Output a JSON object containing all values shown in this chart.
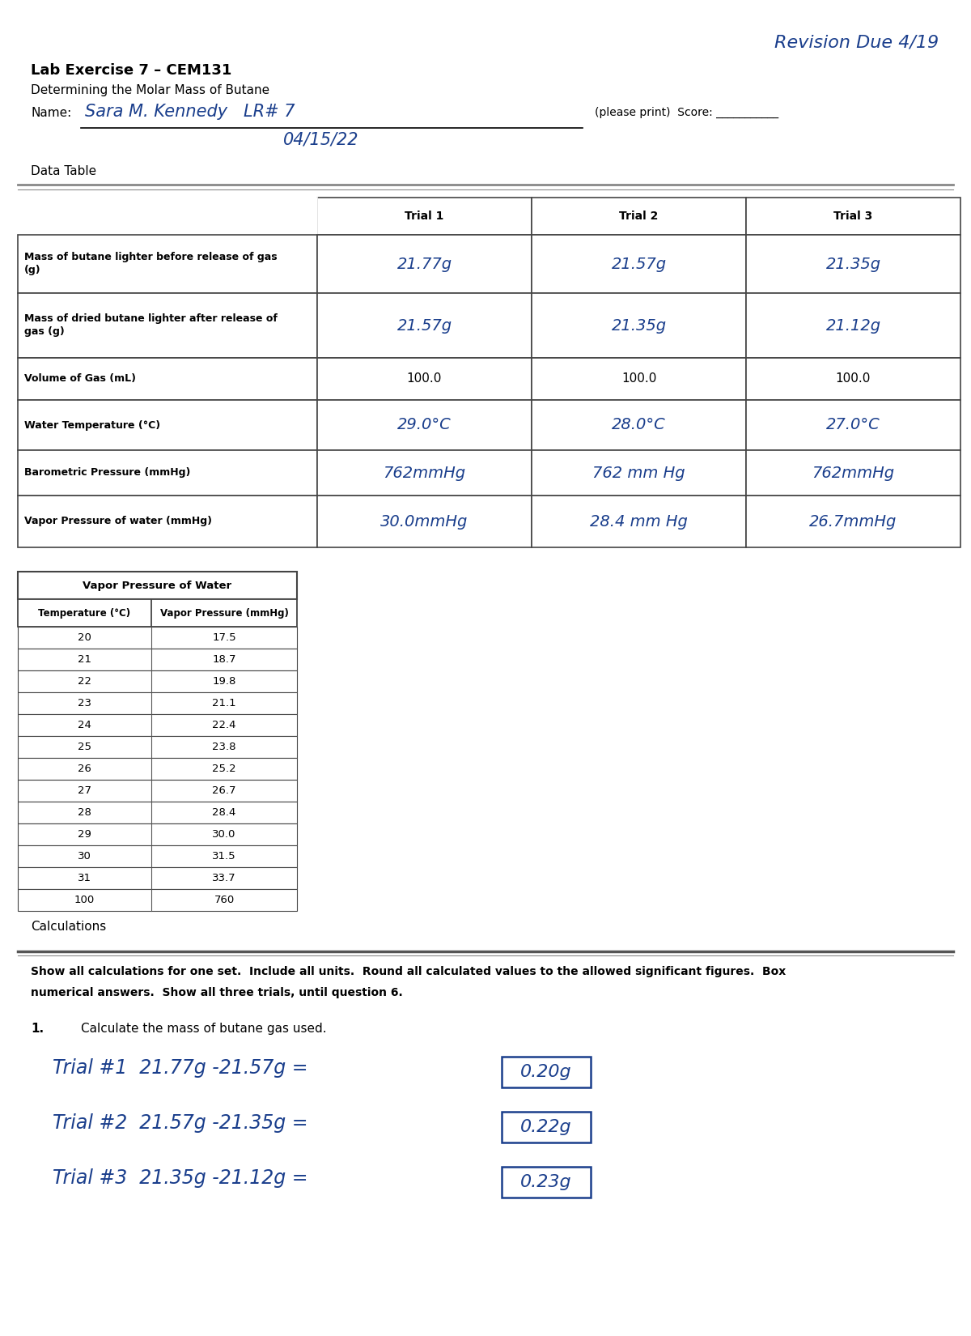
{
  "revision_text": "Revision Due 4/19",
  "title_line1": "Lab Exercise 7 – CEM131",
  "title_line2": "Determining the Molar Mass of Butane",
  "name_label": "Name:",
  "name_value": "Sara M. Kennedy   LR# 7",
  "date_value": "04/15/22",
  "please_print": "(please print)  Score: ___________",
  "data_table_label": "Data Table",
  "table_headers": [
    "",
    "Trial 1",
    "Trial 2",
    "Trial 3"
  ],
  "table_rows": [
    [
      "Mass of butane lighter before release of gas\n(g)",
      "21.77g",
      "21.57g",
      "21.35g"
    ],
    [
      "Mass of dried butane lighter after release of\ngas (g)",
      "21.57g",
      "21.35g",
      "21.12g"
    ],
    [
      "Volume of Gas (mL)",
      "100.0",
      "100.0",
      "100.0"
    ],
    [
      "Water Temperature (°C)",
      "29.0°C",
      "28.0°C",
      "27.0°C"
    ],
    [
      "Barometric Pressure (mmHg)",
      "762mmHg",
      "762 mm Hg",
      "762mmHg"
    ],
    [
      "Vapor Pressure of water (mmHg)",
      "30.0mmHg",
      "28.4 mm Hg",
      "26.7mmHg"
    ]
  ],
  "vapor_table_title": "Vapor Pressure of Water",
  "vapor_table_headers": [
    "Temperature (°C)",
    "Vapor Pressure (mmHg)"
  ],
  "vapor_table_data": [
    [
      "20",
      "17.5"
    ],
    [
      "21",
      "18.7"
    ],
    [
      "22",
      "19.8"
    ],
    [
      "23",
      "21.1"
    ],
    [
      "24",
      "22.4"
    ],
    [
      "25",
      "23.8"
    ],
    [
      "26",
      "25.2"
    ],
    [
      "27",
      "26.7"
    ],
    [
      "28",
      "28.4"
    ],
    [
      "29",
      "30.0"
    ],
    [
      "30",
      "31.5"
    ],
    [
      "31",
      "33.7"
    ],
    [
      "100",
      "760"
    ]
  ],
  "calculations_label": "Calculations",
  "calc_instruction_line1": "Show all calculations for one set.  Include all units.  Round all calculated values to the allowed significant figures.  Box",
  "calc_instruction_line2": "numerical answers.  Show all three trials, until question 6.",
  "q1_label": "1.",
  "q1_text": "Calculate the mass of butane gas used.",
  "trials": [
    {
      "equation": "Trial #1  21.77g -21.57g =",
      "answer": "0.20g"
    },
    {
      "equation": "Trial #2  21.57g -21.35g =",
      "answer": "0.22g"
    },
    {
      "equation": "Trial #3  21.35g -21.12g =",
      "answer": "0.23g"
    }
  ],
  "handwriting_color": "#1a3e8c",
  "bg_color": "#ffffff",
  "text_color": "#000000"
}
